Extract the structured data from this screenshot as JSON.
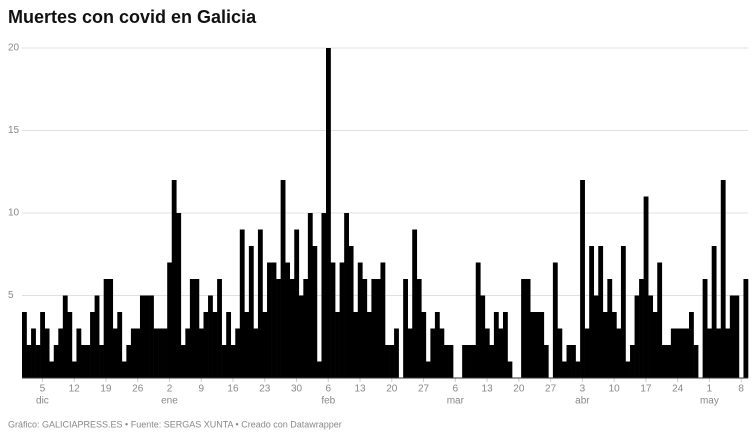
{
  "chart_data": {
    "type": "bar",
    "title": "Muertes con covid en Galicia",
    "source": "Gráfico: GALICIAPRESS.ES • Fuente: SERGAS XUNTA • Creado con Datawrapper",
    "color": "#000000",
    "grid": true,
    "ylim": [
      0,
      20
    ],
    "yticks": [
      5,
      10,
      15,
      20
    ],
    "categories": [
      null,
      null,
      null,
      null,
      "5",
      null,
      null,
      null,
      null,
      null,
      null,
      "12",
      null,
      null,
      null,
      null,
      null,
      null,
      "19",
      null,
      null,
      null,
      null,
      null,
      null,
      "26",
      null,
      null,
      null,
      null,
      null,
      null,
      "2",
      null,
      null,
      null,
      null,
      null,
      null,
      "9",
      null,
      null,
      null,
      null,
      null,
      null,
      "16",
      null,
      null,
      null,
      null,
      null,
      null,
      "23",
      null,
      null,
      null,
      null,
      null,
      null,
      "30",
      null,
      null,
      null,
      null,
      null,
      null,
      "6",
      null,
      null,
      null,
      null,
      null,
      null,
      "13",
      null,
      null,
      null,
      null,
      null,
      null,
      "20",
      null,
      null,
      null,
      null,
      null,
      null,
      "27",
      null,
      null,
      null,
      null,
      null,
      null,
      "6",
      null,
      null,
      null,
      null,
      null,
      null,
      "13",
      null,
      null,
      null,
      null,
      null,
      null,
      "20",
      null,
      null,
      null,
      null,
      null,
      null,
      "27",
      null,
      null,
      null,
      null,
      null,
      null,
      "3",
      null,
      null,
      null,
      null,
      null,
      null,
      "10",
      null,
      null,
      null,
      null,
      null,
      null,
      "17",
      null,
      null,
      null,
      null,
      null,
      null,
      "24",
      null,
      null,
      null,
      null,
      null,
      null,
      "1",
      null,
      null,
      null,
      null,
      null,
      null,
      "8",
      null
    ],
    "month_labels": [
      {
        "value": 4,
        "label": "dic"
      },
      {
        "value": 32,
        "label": "ene"
      },
      {
        "value": 67,
        "label": "feb"
      },
      {
        "value": 95,
        "label": "mar"
      },
      {
        "value": 123,
        "label": "abr"
      },
      {
        "value": 151,
        "label": "may"
      }
    ],
    "values": [
      4,
      2,
      3,
      2,
      4,
      3,
      1,
      2,
      3,
      5,
      4,
      1,
      3,
      2,
      2,
      4,
      5,
      2,
      6,
      6,
      3,
      4,
      1,
      2,
      3,
      3,
      5,
      5,
      5,
      3,
      3,
      3,
      7,
      12,
      10,
      2,
      3,
      6,
      6,
      3,
      4,
      5,
      4,
      6,
      2,
      4,
      2,
      3,
      9,
      4,
      8,
      3,
      9,
      4,
      7,
      7,
      6,
      12,
      7,
      6,
      9,
      5,
      6,
      10,
      8,
      1,
      10,
      20,
      7,
      4,
      7,
      10,
      8,
      4,
      7,
      6,
      4,
      6,
      6,
      7,
      2,
      2,
      3,
      0,
      6,
      3,
      9,
      6,
      4,
      1,
      3,
      4,
      3,
      2,
      2,
      0,
      0,
      2,
      2,
      2,
      7,
      5,
      3,
      2,
      4,
      3,
      4,
      1,
      0,
      0,
      6,
      6,
      4,
      4,
      4,
      2,
      0,
      7,
      3,
      1,
      2,
      2,
      1,
      12,
      3,
      8,
      5,
      8,
      4,
      6,
      4,
      3,
      8,
      1,
      2,
      5,
      6,
      11,
      5,
      4,
      7,
      2,
      2,
      3,
      3,
      3,
      3,
      4,
      2,
      0,
      6,
      3,
      8,
      3,
      12,
      3,
      5,
      5,
      0,
      6
    ]
  }
}
